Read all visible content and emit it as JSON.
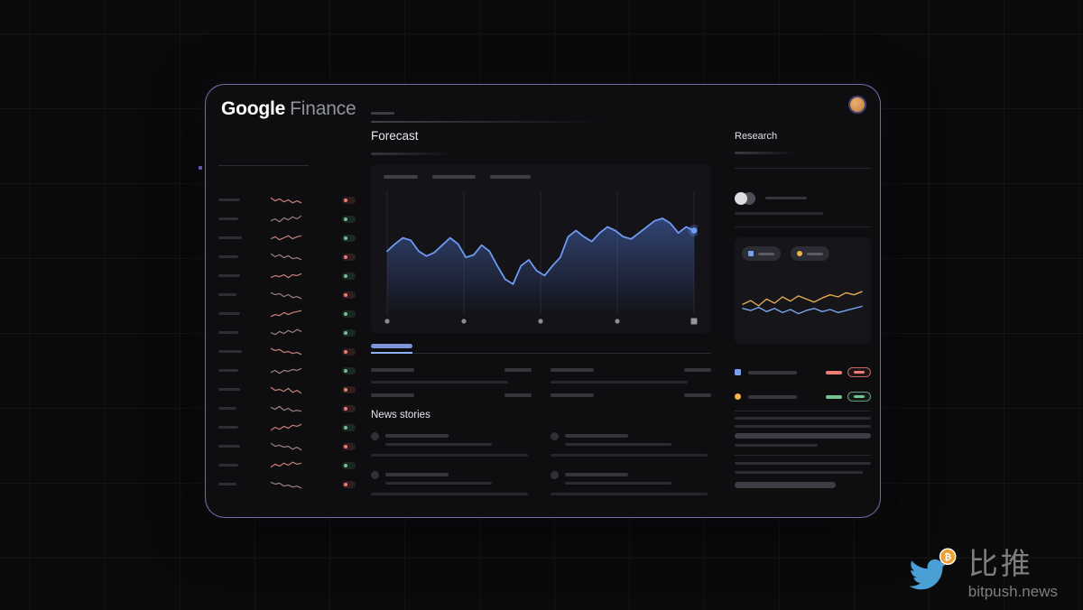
{
  "header": {
    "logo_google": "Google",
    "logo_finance": "Finance"
  },
  "main": {
    "forecast_title": "Forecast",
    "news_title": "News stories"
  },
  "research": {
    "title": "Research"
  },
  "watermark": {
    "brand_cn": "比推",
    "brand_en": "bitpush.news",
    "coin_symbol": "₿"
  },
  "colors": {
    "red": "#ee7d74",
    "green": "#74c08e",
    "yellow": "#f0b24a",
    "accent_blue": "#8ab4f8",
    "chart_blue": "#6d9bf2",
    "chart_fill": "#4f74cf",
    "card_border": "#9699e3",
    "bird_blue": "#4aa0d5",
    "coin_orange": "#f0a02f"
  },
  "watchlist": {
    "items": [
      {
        "label_w": 24,
        "badge": "red",
        "spark_color": "#c97f78",
        "spark": [
          7,
          4,
          6,
          3,
          5,
          2,
          4,
          2
        ]
      },
      {
        "label_w": 22,
        "badge": "green",
        "spark_color": "#9d7f80",
        "spark": [
          3,
          5,
          2,
          6,
          4,
          7,
          5,
          8
        ]
      },
      {
        "label_w": 26,
        "badge": "green",
        "spark_color": "#c97f78",
        "spark": [
          4,
          6,
          3,
          5,
          7,
          4,
          6,
          7
        ]
      },
      {
        "label_w": 22,
        "badge": "red",
        "spark_color": "#9d7f80",
        "spark": [
          8,
          5,
          7,
          4,
          6,
          3,
          4,
          2
        ]
      },
      {
        "label_w": 24,
        "badge": "green",
        "spark_color": "#c97f78",
        "spark": [
          3,
          5,
          4,
          6,
          3,
          6,
          5,
          7
        ]
      },
      {
        "label_w": 20,
        "badge": "red",
        "spark_color": "#9d7f80",
        "spark": [
          7,
          5,
          6,
          3,
          5,
          2,
          3,
          1
        ]
      },
      {
        "label_w": 24,
        "badge": "green",
        "spark_color": "#c97f78",
        "spark": [
          2,
          4,
          3,
          6,
          4,
          6,
          7,
          8
        ]
      },
      {
        "label_w": 22,
        "badge": "green",
        "spark_color": "#9d7f80",
        "spark": [
          5,
          3,
          6,
          4,
          7,
          5,
          8,
          6
        ]
      },
      {
        "label_w": 26,
        "badge": "red",
        "spark_color": "#c97f78",
        "spark": [
          8,
          6,
          7,
          4,
          5,
          3,
          4,
          2
        ]
      },
      {
        "label_w": 22,
        "badge": "green",
        "spark_color": "#9d7f80",
        "spark": [
          3,
          5,
          2,
          5,
          4,
          6,
          5,
          7
        ]
      },
      {
        "label_w": 24,
        "badge": "red",
        "spark_color": "#c97f78",
        "spark": [
          7,
          4,
          5,
          3,
          6,
          2,
          4,
          1
        ]
      },
      {
        "label_w": 20,
        "badge": "red",
        "spark_color": "#9d7f80",
        "spark": [
          6,
          4,
          7,
          3,
          5,
          2,
          3,
          2
        ]
      },
      {
        "label_w": 22,
        "badge": "green",
        "spark_color": "#c97f78",
        "spark": [
          2,
          5,
          3,
          6,
          4,
          7,
          6,
          8
        ]
      },
      {
        "label_w": 24,
        "badge": "red",
        "spark_color": "#9d7f80",
        "spark": [
          8,
          5,
          6,
          4,
          5,
          2,
          4,
          1
        ]
      },
      {
        "label_w": 22,
        "badge": "green",
        "spark_color": "#c97f78",
        "spark": [
          3,
          6,
          4,
          7,
          5,
          8,
          6,
          7
        ]
      },
      {
        "label_w": 20,
        "badge": "red",
        "spark_color": "#9d7f80",
        "spark": [
          7,
          5,
          6,
          3,
          4,
          2,
          3,
          1
        ]
      }
    ]
  },
  "chart_data": [
    {
      "type": "line",
      "name": "forecast-price-chart",
      "title": "Forecast",
      "color": "#6d9bf2",
      "fill_color": "#4f74cf",
      "gridlines": 5,
      "values": [
        53,
        59,
        64,
        62,
        53,
        49,
        52,
        58,
        64,
        59,
        48,
        50,
        58,
        53,
        41,
        30,
        26,
        41,
        46,
        37,
        33,
        41,
        48,
        65,
        70,
        65,
        61,
        68,
        73,
        70,
        65,
        63,
        68,
        73,
        78,
        80,
        76,
        68,
        73,
        70
      ]
    },
    {
      "type": "line",
      "name": "research-mini-chart",
      "series": [
        {
          "name": "series-yellow",
          "color": "#e2aa4c",
          "values": [
            48,
            55,
            45,
            58,
            50,
            62,
            54,
            64,
            58,
            52,
            60,
            66,
            62,
            70,
            66,
            72
          ]
        },
        {
          "name": "series-blue",
          "color": "#7aa5f0",
          "values": [
            40,
            36,
            42,
            34,
            40,
            32,
            38,
            30,
            36,
            40,
            34,
            38,
            32,
            36,
            40,
            44
          ]
        }
      ]
    }
  ]
}
